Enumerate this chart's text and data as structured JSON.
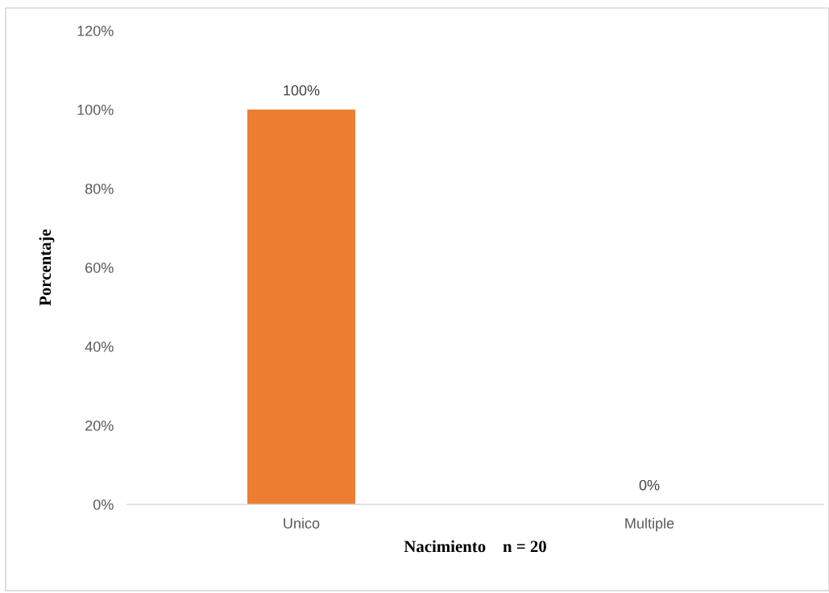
{
  "chart_data": {
    "type": "bar",
    "categories": [
      "Unico",
      "Multiple"
    ],
    "values": [
      100,
      0
    ],
    "color": "#ed7d31",
    "value_labels": [
      "100%",
      "0%"
    ],
    "xlabel": "Nacimiento    n = 20",
    "ylabel": "Porcentaje",
    "ylim": [
      0,
      120
    ],
    "yticks": [
      {
        "value": 0,
        "label": "0%"
      },
      {
        "value": 20,
        "label": "20%"
      },
      {
        "value": 40,
        "label": "40%"
      },
      {
        "value": 60,
        "label": "60%"
      },
      {
        "value": 80,
        "label": "80%"
      },
      {
        "value": 100,
        "label": "100%"
      },
      {
        "value": 120,
        "label": "120%"
      }
    ]
  }
}
